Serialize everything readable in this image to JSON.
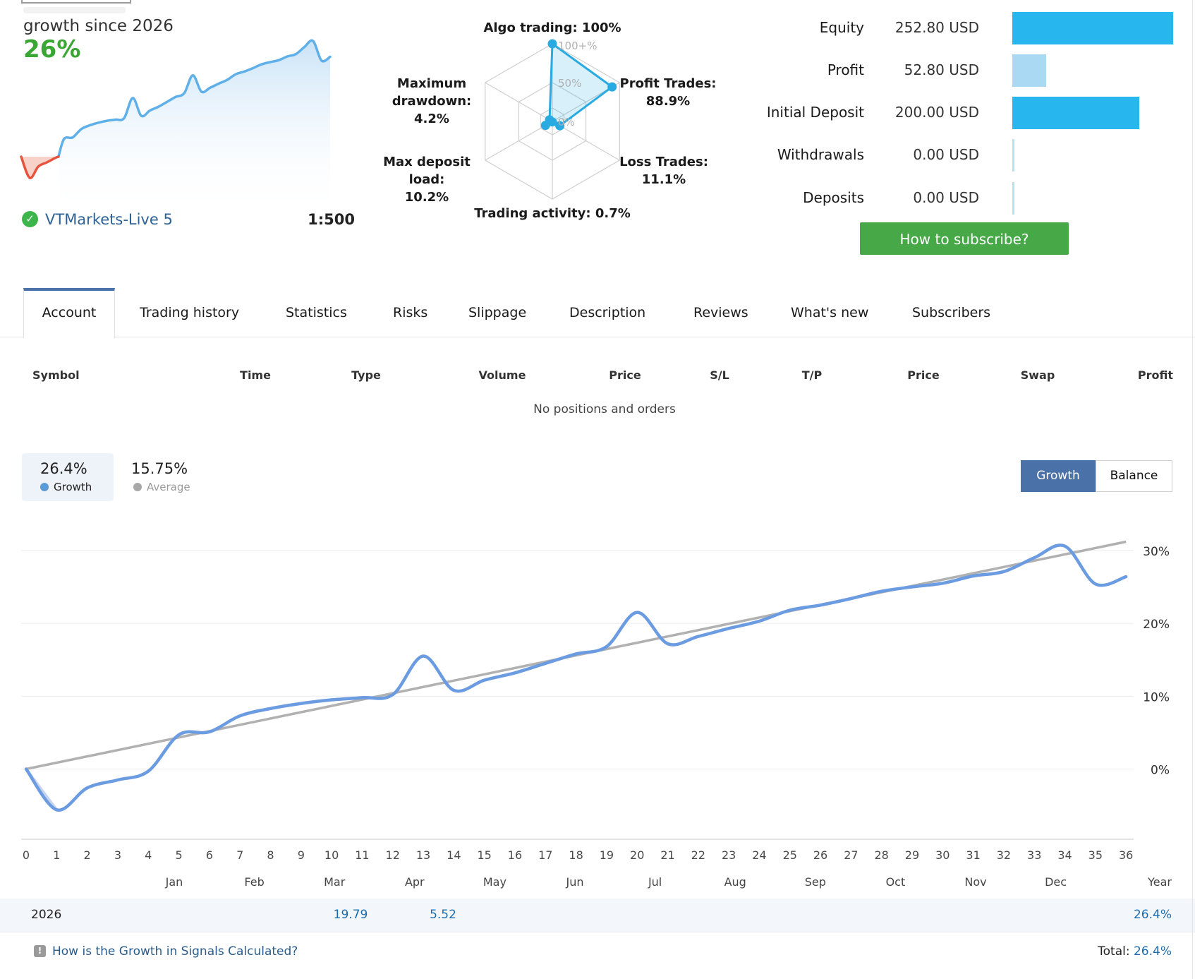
{
  "hero": {
    "growth_caption": "growth since 2026",
    "growth_value": "26%",
    "account_name": "VTMarkets-Live 5",
    "leverage": "1:500",
    "verified_icon": "green-check-icon"
  },
  "stats": {
    "rows": [
      {
        "label": "Equity",
        "value": "252.80 USD",
        "amount": 252.8,
        "style": "strong"
      },
      {
        "label": "Profit",
        "value": "52.80 USD",
        "amount": 52.8,
        "style": "light"
      },
      {
        "label": "Initial Deposit",
        "value": "200.00 USD",
        "amount": 200.0,
        "style": "strong"
      },
      {
        "label": "Withdrawals",
        "value": "0.00 USD",
        "amount": 0,
        "style": "zero"
      },
      {
        "label": "Deposits",
        "value": "0.00 USD",
        "amount": 0,
        "style": "zero"
      }
    ],
    "subscribe_label": "How to subscribe?"
  },
  "tabs": {
    "items": [
      "Account",
      "Trading history",
      "Statistics",
      "Risks",
      "Slippage",
      "Description",
      "Reviews",
      "What's new",
      "Subscribers"
    ],
    "active": "Account"
  },
  "positions": {
    "columns": [
      "Symbol",
      "Time",
      "Type",
      "Volume",
      "Price",
      "S/L",
      "T/P",
      "Price",
      "Swap",
      "Profit"
    ],
    "empty_text": "No positions and orders"
  },
  "growth_section": {
    "legend": {
      "growth_value": "26.4%",
      "growth_label": "Growth",
      "average_value": "15.75%",
      "average_label": "Average"
    },
    "toggle": {
      "growth": "Growth",
      "balance": "Balance",
      "active": "Growth"
    }
  },
  "summary": {
    "year": "2026",
    "cells": [
      {
        "month": "Mar",
        "value": "19.79"
      },
      {
        "month": "Apr",
        "value": "5.52"
      }
    ],
    "year_total": "26.4%"
  },
  "footer": {
    "link_text": "How is the Growth in Signals Calculated?",
    "total_label": "Total:",
    "total_value": "26.4%"
  },
  "colors": {
    "radar_blue": "#29abe2",
    "chart_blue": "#6b9be0",
    "trend_gray": "#b1b1b1",
    "growth_green": "#3aa634",
    "button_green": "#47a847",
    "active_blue": "#4a72a8",
    "link_blue": "#2a5d8c",
    "value_blue": "#1b6daf",
    "spark_red": "#e6543e",
    "spark_blue": "#5fb0e8",
    "bar_strong": "#27b6ee",
    "bar_light": "#a9d9f3",
    "bar_zero": "#b5e2f5"
  },
  "chart_data": [
    {
      "type": "line",
      "name": "growth-chart",
      "title": "Growth since 2026",
      "x": [
        0,
        1,
        2,
        3,
        4,
        5,
        6,
        7,
        8,
        9,
        10,
        11,
        12,
        13,
        14,
        15,
        16,
        17,
        18,
        19,
        20,
        21,
        22,
        23,
        24,
        25,
        26,
        27,
        28,
        29,
        30,
        31,
        32,
        33,
        34,
        35,
        36
      ],
      "series": [
        {
          "name": "Growth",
          "color": "#6b9be0",
          "values": [
            0,
            -5.6,
            -2.6,
            -1.5,
            -0.3,
            4.7,
            5.1,
            7.3,
            8.3,
            9.0,
            9.5,
            9.8,
            10.2,
            15.5,
            10.8,
            12.2,
            13.2,
            14.5,
            15.8,
            16.8,
            21.5,
            17.2,
            18.2,
            19.3,
            20.3,
            21.8,
            22.5,
            23.4,
            24.4,
            25.0,
            25.5,
            26.5,
            27.1,
            29.0,
            30.6,
            25.4,
            26.4
          ]
        },
        {
          "name": "Average",
          "color": "#b1b1b1",
          "linear": {
            "start": 0,
            "end": 31.2
          }
        }
      ],
      "months": [
        "Jan",
        "Feb",
        "Mar",
        "Apr",
        "May",
        "Jun",
        "Jul",
        "Aug",
        "Sep",
        "Oct",
        "Nov",
        "Dec"
      ],
      "year_label": "Year",
      "y_ticks": [
        "0%",
        "10%",
        "20%",
        "30%"
      ],
      "ylim": [
        -9.5,
        33
      ],
      "grid": true,
      "legend_position": "top-left"
    },
    {
      "type": "radar",
      "name": "signal-quality-radar",
      "rings": [
        "100+%",
        "50%",
        "0%"
      ],
      "metrics": [
        {
          "label": "Algo trading",
          "value": 100,
          "label_lines": [
            "Algo trading: 100%"
          ]
        },
        {
          "label": "Profit Trades",
          "value": 88.9,
          "label_lines": [
            "Profit Trades:",
            "88.9%"
          ]
        },
        {
          "label": "Loss Trades",
          "value": 11.1,
          "label_lines": [
            "Loss Trades:",
            "11.1%"
          ]
        },
        {
          "label": "Trading activity",
          "value": 0.7,
          "label_lines": [
            "Trading activity: 0.7%"
          ]
        },
        {
          "label": "Max deposit load",
          "value": 10.2,
          "label_lines": [
            "Max deposit load:",
            "10.2%"
          ]
        },
        {
          "label": "Maximum drawdown",
          "value": 4.2,
          "label_lines": [
            "Maximum",
            "drawdown: 4.2%"
          ]
        }
      ]
    },
    {
      "type": "area",
      "name": "hero-sparkline",
      "note": "same Growth series rendered small; red segment while below start level",
      "values": [
        0,
        -5.6,
        -2.6,
        -1.5,
        -0.3,
        4.7,
        5.1,
        7.3,
        8.3,
        9.0,
        9.5,
        9.8,
        10.2,
        15.5,
        10.8,
        12.2,
        13.2,
        14.5,
        15.8,
        16.8,
        21.5,
        17.2,
        18.2,
        19.3,
        20.3,
        21.8,
        22.5,
        23.4,
        24.4,
        25.0,
        25.5,
        26.5,
        27.1,
        29.0,
        30.6,
        25.4,
        26.4
      ]
    },
    {
      "type": "bar",
      "name": "account-stats-bars",
      "categories": [
        "Equity",
        "Profit",
        "Initial Deposit",
        "Withdrawals",
        "Deposits"
      ],
      "values": [
        252.8,
        52.8,
        200.0,
        0,
        0
      ],
      "unit": "USD"
    }
  ]
}
